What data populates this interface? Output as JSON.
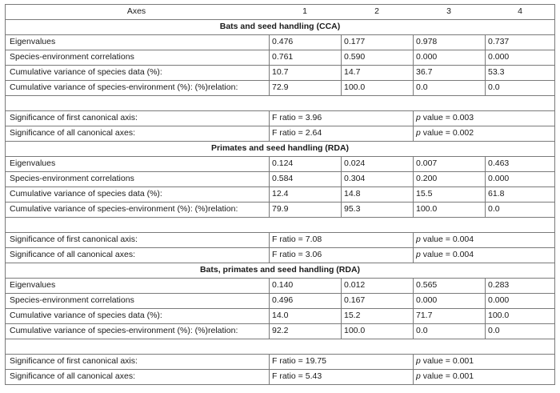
{
  "header": {
    "axes_label": "Axes",
    "col1": "1",
    "col2": "2",
    "col3": "3",
    "col4": "4"
  },
  "sections": [
    {
      "title": "Bats and seed handling (CCA)",
      "rows": [
        {
          "label": "Eigenvalues",
          "values": [
            "0.476",
            "0.177",
            "0.978",
            "0.737"
          ]
        },
        {
          "label": "Species-environment correlations",
          "values": [
            "0.761",
            "0.590",
            "0.000",
            "0.000"
          ]
        },
        {
          "label": "Cumulative variance of species data (%):",
          "values": [
            "10.7",
            "14.7",
            "36.7",
            "53.3"
          ]
        },
        {
          "label": "Cumulative variance of species-environment (%): (%)relation:",
          "values": [
            "72.9",
            "100.0",
            "0.0",
            "0.0"
          ]
        }
      ],
      "significance": [
        {
          "label": "Significance of first canonical axis:",
          "f_ratio": "F ratio = 3.96",
          "p_prefix": "p",
          "p_value": " value = 0.003"
        },
        {
          "label": "Significance of all canonical axes:",
          "f_ratio": "F ratio = 2.64",
          "p_prefix": "p",
          "p_value": " value = 0.002"
        }
      ]
    },
    {
      "title": "Primates and seed handling (RDA)",
      "rows": [
        {
          "label": "Eigenvalues",
          "values": [
            "0.124",
            "0.024",
            "0.007",
            "0.463"
          ]
        },
        {
          "label": "Species-environment correlations",
          "values": [
            "0.584",
            "0.304",
            "0.200",
            "0.000"
          ]
        },
        {
          "label": "Cumulative variance of species data (%):",
          "values": [
            "12.4",
            "14.8",
            "15.5",
            "61.8"
          ]
        },
        {
          "label": "Cumulative variance of species-environment (%): (%)relation:",
          "values": [
            "79.9",
            "95.3",
            "100.0",
            "0.0"
          ]
        }
      ],
      "significance": [
        {
          "label": "Significance of first canonical axis:",
          "f_ratio": "F ratio = 7.08",
          "p_prefix": "p",
          "p_value": " value = 0.004"
        },
        {
          "label": "Significance of all canonical axes:",
          "f_ratio": "F ratio = 3.06",
          "p_prefix": "p",
          "p_value": " value = 0.004"
        }
      ]
    },
    {
      "title": "Bats, primates and seed handling (RDA)",
      "rows": [
        {
          "label": "Eigenvalues",
          "values": [
            "0.140",
            "0.012",
            "0.565",
            "0.283"
          ]
        },
        {
          "label": "Species-environment correlations",
          "values": [
            "0.496",
            "0.167",
            "0.000",
            "0.000"
          ]
        },
        {
          "label": "Cumulative variance of species data (%):",
          "values": [
            "14.0",
            "15.2",
            "71.7",
            "100.0"
          ]
        },
        {
          "label": "Cumulative variance of species-environment (%): (%)relation:",
          "values": [
            "92.2",
            "100.0",
            "0.0",
            "0.0"
          ]
        }
      ],
      "significance": [
        {
          "label": "Significance of first canonical axis:",
          "f_ratio": "F ratio = 19.75",
          "p_prefix": "p",
          "p_value": " value = 0.001"
        },
        {
          "label": "Significance of all canonical axes:",
          "f_ratio": "F ratio = 5.43",
          "p_prefix": "p",
          "p_value": " value = 0.001"
        }
      ]
    }
  ]
}
